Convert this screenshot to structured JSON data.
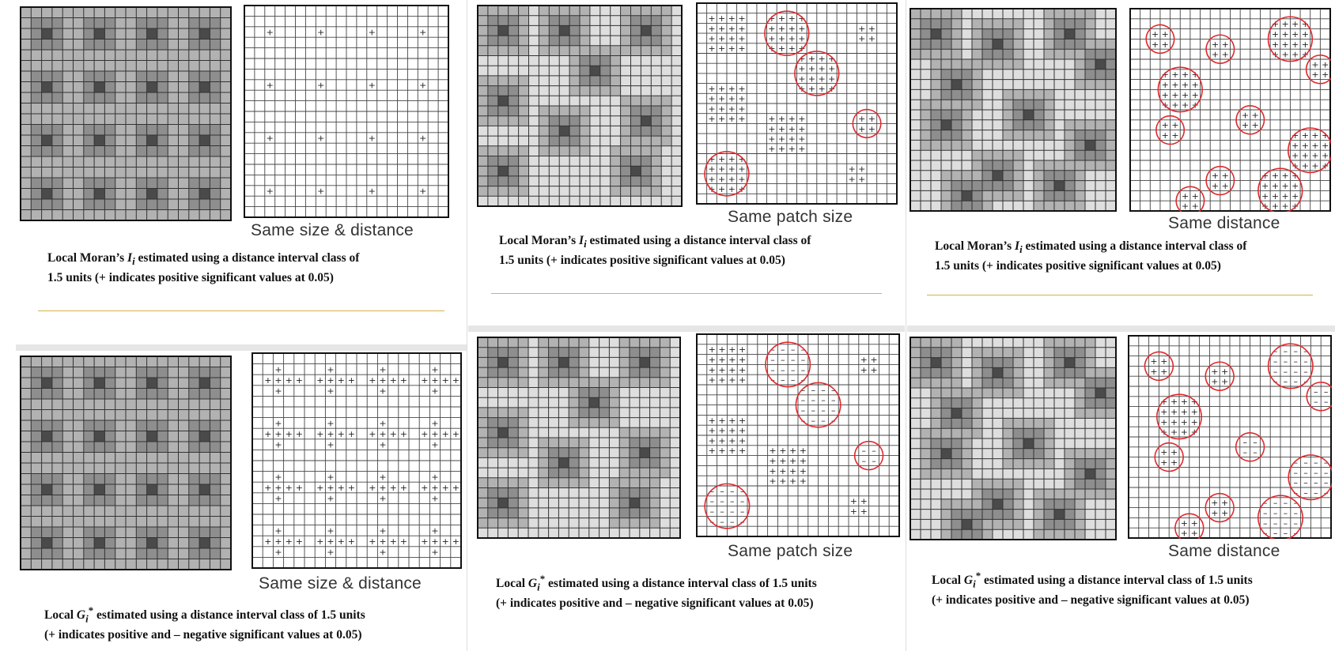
{
  "panels": [
    {
      "row": 0,
      "col": 0,
      "label": "Same size & distance",
      "caption_stat": "Moran",
      "caption_line1_rest": " estimated using a distance interval class of",
      "caption_line2": "1.5 units (+ indicates positive significant values at 0.05)"
    },
    {
      "row": 0,
      "col": 1,
      "label": "Same patch size",
      "caption_stat": "Moran",
      "caption_line1_rest": " estimated using a distance interval class of",
      "caption_line2": "1.5 units (+ indicates  positive significant values at 0.05)"
    },
    {
      "row": 0,
      "col": 2,
      "label": "Same distance",
      "caption_stat": "Moran",
      "caption_line1_rest": " estimated using a distance interval class of",
      "caption_line2": "1.5 units (+ indicates positive significant values at 0.05)"
    },
    {
      "row": 1,
      "col": 0,
      "label": "Same size & distance",
      "caption_stat": "G",
      "caption_line1_rest": " estimated using a distance interval class of 1.5 units",
      "caption_line2": "(+ indicates positive and – negative significant values at 0.05)"
    },
    {
      "row": 1,
      "col": 1,
      "label": "Same patch size",
      "caption_stat": "G",
      "caption_line1_rest": " estimated using a distance interval class of 1.5 units",
      "caption_line2": "(+ indicates positive and – negative significant values at 0.05)"
    },
    {
      "row": 1,
      "col": 2,
      "label": "Same distance",
      "caption_stat": "G",
      "caption_line1_rest": " estimated using a distance interval class of 1.5 units",
      "caption_line2": "(+ indicates positive and – negative significant values at 0.05)"
    }
  ],
  "stat_text": {
    "moran_prefix": "Local Moran’s ",
    "moran_symbol": "I",
    "moran_sub": "i",
    "g_prefix": "Local ",
    "g_symbol": "G",
    "g_sub": "i",
    "g_sup": "*"
  },
  "symbols": {
    "plus": "+",
    "minus": "–"
  },
  "colors": {
    "annotation": "#e0282c",
    "gold_rule": "#d4b24a",
    "grid_line": "#222222"
  }
}
